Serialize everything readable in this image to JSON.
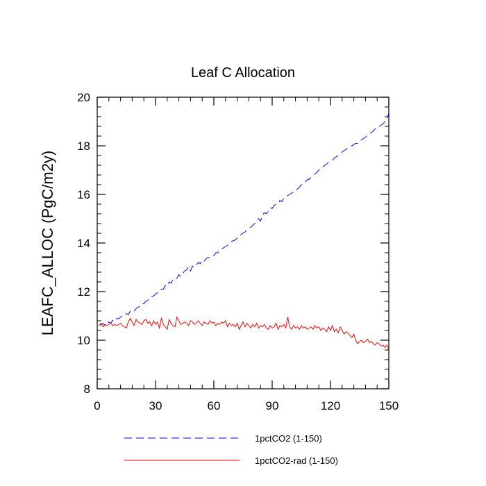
{
  "chart_data": {
    "type": "line",
    "title": "Leaf C Allocation",
    "xlabel": "",
    "ylabel": "LEAFC_ALLOC  (PgC/m2y)",
    "xlim": [
      0,
      150
    ],
    "ylim": [
      8,
      20
    ],
    "x_ticks": [
      0,
      30,
      60,
      90,
      120,
      150
    ],
    "y_ticks": [
      8,
      10,
      12,
      14,
      16,
      18,
      20
    ],
    "grid": false,
    "legend_position": "bottom",
    "x": [
      1,
      2,
      3,
      4,
      5,
      6,
      7,
      8,
      9,
      10,
      11,
      12,
      13,
      14,
      15,
      16,
      17,
      18,
      19,
      20,
      21,
      22,
      23,
      24,
      25,
      26,
      27,
      28,
      29,
      30,
      31,
      32,
      33,
      34,
      35,
      36,
      37,
      38,
      39,
      40,
      41,
      42,
      43,
      44,
      45,
      46,
      47,
      48,
      49,
      50,
      51,
      52,
      53,
      54,
      55,
      56,
      57,
      58,
      59,
      60,
      61,
      62,
      63,
      64,
      65,
      66,
      67,
      68,
      69,
      70,
      71,
      72,
      73,
      74,
      75,
      76,
      77,
      78,
      79,
      80,
      81,
      82,
      83,
      84,
      85,
      86,
      87,
      88,
      89,
      90,
      91,
      92,
      93,
      94,
      95,
      96,
      97,
      98,
      99,
      100,
      101,
      102,
      103,
      104,
      105,
      106,
      107,
      108,
      109,
      110,
      111,
      112,
      113,
      114,
      115,
      116,
      117,
      118,
      119,
      120,
      121,
      122,
      123,
      124,
      125,
      126,
      127,
      128,
      129,
      130,
      131,
      132,
      133,
      134,
      135,
      136,
      137,
      138,
      139,
      140,
      141,
      142,
      143,
      144,
      145,
      146,
      147,
      148,
      149,
      150
    ],
    "series": [
      {
        "name": "1pctCO2 (1-150)",
        "color": "#0000ff",
        "dash": "dashed",
        "values": [
          10.6,
          10.65,
          10.7,
          10.6,
          10.68,
          10.75,
          10.7,
          10.82,
          10.78,
          10.9,
          10.88,
          10.95,
          11.0,
          11.0,
          11.1,
          11.05,
          11.2,
          11.25,
          11.2,
          11.3,
          11.35,
          11.42,
          11.5,
          11.5,
          11.6,
          11.65,
          11.7,
          11.8,
          11.82,
          11.9,
          11.95,
          12.05,
          12.1,
          12.1,
          12.25,
          12.22,
          12.4,
          12.35,
          12.5,
          12.55,
          12.55,
          12.7,
          12.62,
          12.75,
          12.85,
          12.9,
          13.02,
          12.85,
          13.05,
          13.0,
          13.1,
          13.2,
          13.15,
          13.3,
          13.25,
          13.35,
          13.4,
          13.4,
          13.5,
          13.48,
          13.6,
          13.6,
          13.7,
          13.75,
          13.8,
          13.85,
          13.9,
          13.98,
          14.05,
          14.1,
          14.12,
          14.2,
          14.3,
          14.35,
          14.4,
          14.45,
          14.55,
          14.6,
          14.65,
          14.72,
          14.8,
          14.85,
          15.0,
          14.9,
          15.15,
          15.25,
          15.2,
          15.3,
          15.45,
          15.42,
          15.55,
          15.6,
          15.62,
          15.75,
          15.7,
          15.85,
          15.9,
          15.95,
          16.0,
          16.05,
          16.1,
          16.2,
          16.22,
          16.3,
          16.4,
          16.45,
          16.5,
          16.6,
          16.62,
          16.7,
          16.8,
          16.85,
          16.9,
          17.0,
          17.05,
          17.1,
          17.2,
          17.25,
          17.32,
          17.35,
          17.4,
          17.5,
          17.55,
          17.6,
          17.65,
          17.75,
          17.8,
          17.85,
          17.9,
          17.95,
          18.0,
          18.05,
          18.1,
          18.1,
          18.2,
          18.25,
          18.3,
          18.35,
          18.45,
          18.5,
          18.55,
          18.6,
          18.7,
          18.75,
          18.8,
          18.85,
          18.9,
          19.0,
          19.1,
          19.35
        ]
      },
      {
        "name": "1pctCO2-rad (1-150)",
        "color": "#ff0000",
        "dash": "solid",
        "values": [
          10.6,
          10.7,
          10.55,
          10.65,
          10.6,
          10.65,
          10.7,
          10.6,
          10.65,
          10.6,
          10.65,
          10.7,
          10.6,
          10.55,
          10.5,
          10.75,
          10.9,
          10.75,
          10.6,
          10.85,
          10.75,
          10.7,
          10.65,
          10.8,
          10.85,
          10.7,
          10.75,
          10.6,
          10.8,
          10.65,
          10.75,
          10.5,
          10.9,
          10.65,
          10.55,
          10.45,
          10.85,
          10.7,
          10.6,
          10.55,
          10.95,
          10.8,
          10.65,
          10.7,
          10.75,
          10.7,
          10.6,
          10.8,
          10.75,
          10.65,
          10.7,
          10.8,
          10.7,
          10.6,
          10.75,
          10.7,
          10.65,
          10.8,
          10.7,
          10.75,
          10.6,
          10.7,
          10.65,
          10.75,
          10.7,
          10.8,
          10.55,
          10.7,
          10.6,
          10.65,
          10.55,
          10.7,
          10.45,
          10.6,
          10.75,
          10.55,
          10.7,
          10.6,
          10.5,
          10.65,
          10.55,
          10.7,
          10.5,
          10.6,
          10.55,
          10.65,
          10.5,
          10.45,
          10.6,
          10.5,
          10.55,
          10.7,
          10.45,
          10.6,
          10.55,
          10.65,
          10.5,
          10.95,
          10.55,
          10.45,
          10.6,
          10.5,
          10.55,
          10.45,
          10.6,
          10.5,
          10.55,
          10.45,
          10.5,
          10.55,
          10.45,
          10.6,
          10.5,
          10.55,
          10.4,
          10.5,
          10.45,
          10.35,
          10.55,
          10.4,
          10.6,
          10.35,
          10.45,
          10.3,
          10.55,
          10.4,
          10.25,
          10.35,
          10.3,
          10.2,
          10.1,
          10.25,
          10.0,
          9.85,
          9.95,
          10.0,
          9.9,
          9.95,
          10.05,
          9.9,
          9.95,
          9.85,
          9.8,
          9.9,
          9.85,
          9.75,
          9.8,
          9.7,
          9.8,
          9.65
        ]
      }
    ]
  }
}
